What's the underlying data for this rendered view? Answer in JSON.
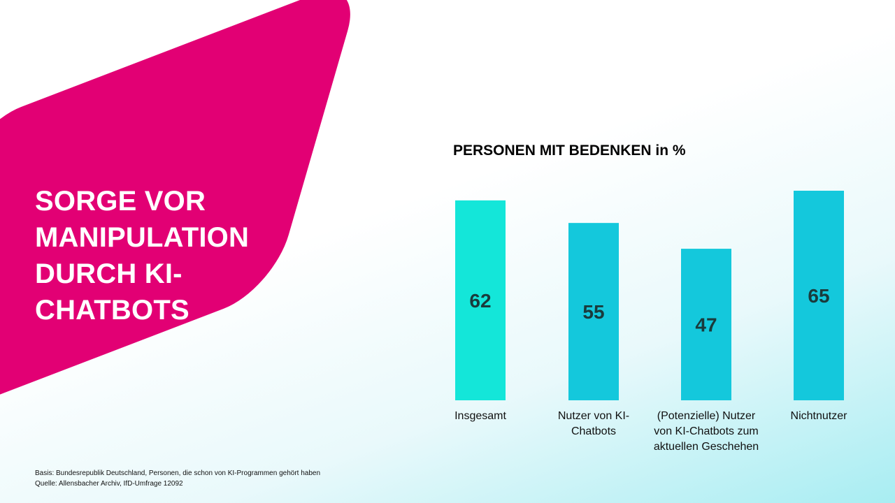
{
  "slide": {
    "headline_lines": [
      "SORGE VOR",
      "MANIPULATION",
      "DURCH KI-",
      "CHATBOTS"
    ],
    "accent_color": "#e20074",
    "footnote": {
      "basis": "Basis: Bundesrepublik Deutschland, Personen, die schon von KI-Programmen gehört haben",
      "source": "Quelle: Allensbacher Archiv, IfD-Umfrage 12092"
    }
  },
  "chart_data": {
    "type": "bar",
    "title": "PERSONEN MIT BEDENKEN in %",
    "categories": [
      [
        "Insgesamt"
      ],
      [
        "Nutzer von KI-",
        "Chatbots"
      ],
      [
        "(Potenzielle) Nutzer",
        "von KI-Chatbots zum",
        "aktuellen Geschehen"
      ],
      [
        "Nichtnutzer"
      ]
    ],
    "values": [
      62,
      55,
      47,
      65
    ],
    "bar_colors": [
      "#14e6d9",
      "#14c8dc",
      "#14c8dc",
      "#14c8dc"
    ],
    "value_label_color": "#1a3b3c",
    "ylim": [
      0,
      65
    ]
  }
}
